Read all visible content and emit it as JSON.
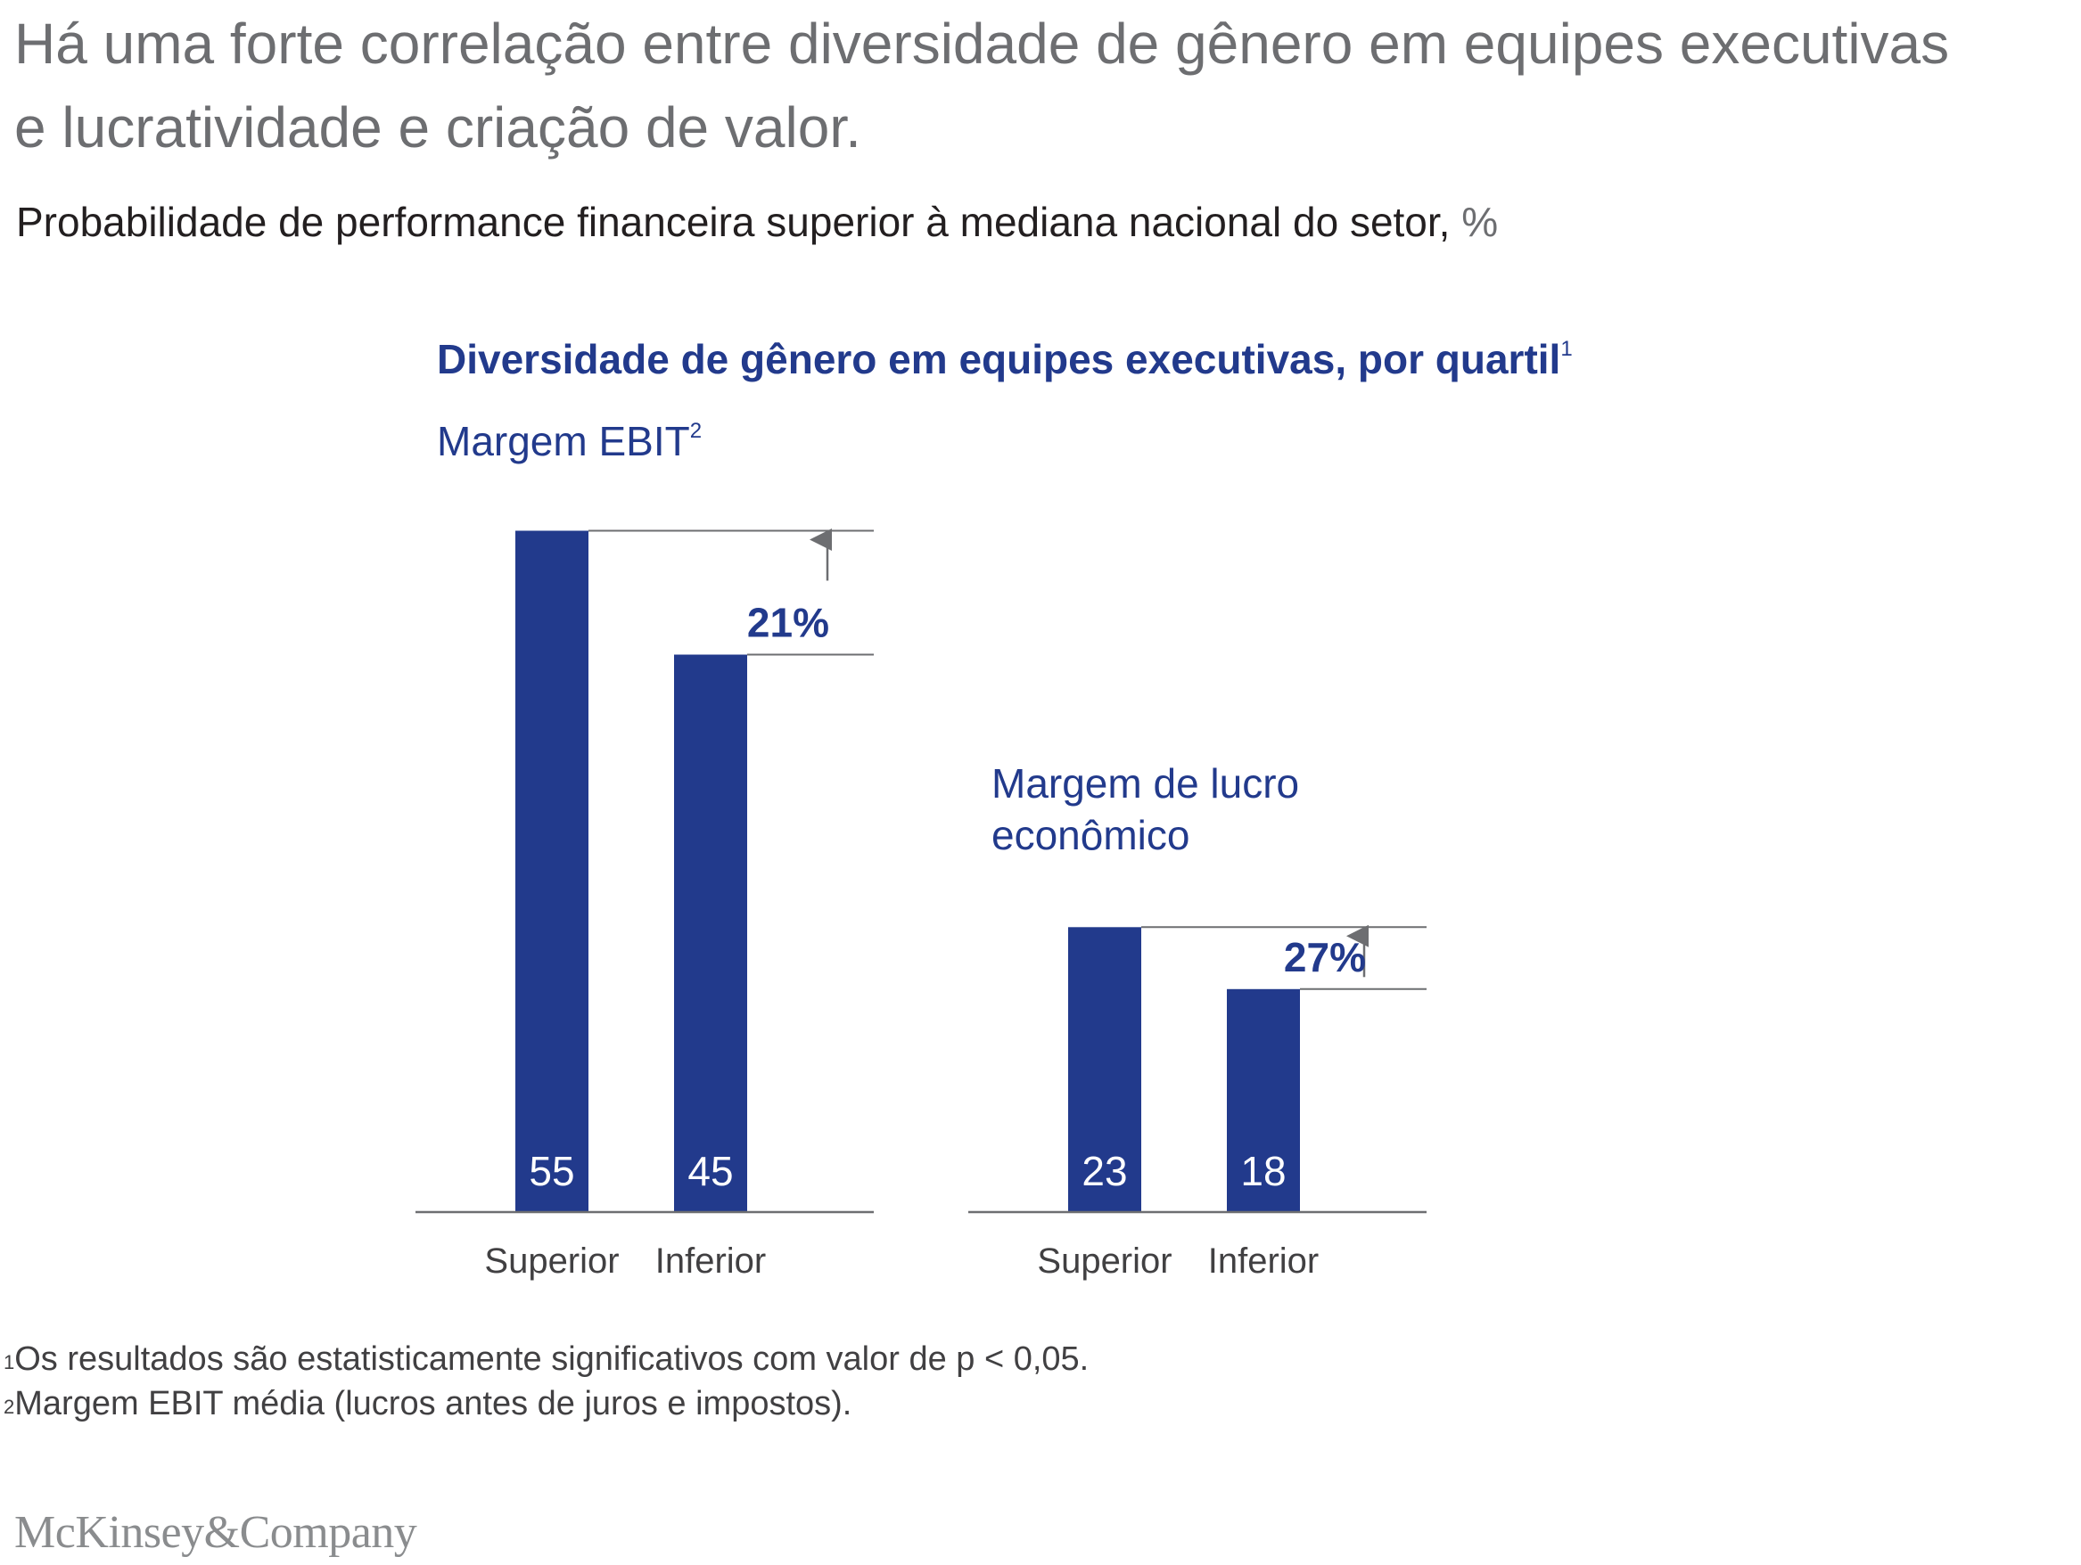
{
  "headline": "Há uma forte correlação entre diversidade de gênero em equipes executivas e lucratividade e criação de valor.",
  "subtitle": {
    "text": "Probabilidade de performance financeira superior à mediana nacional do setor,",
    "unit": " %"
  },
  "chart_title": {
    "text": "Diversidade de gênero em equipes executivas, por quartil",
    "footnote_mark": "1"
  },
  "colors": {
    "bar": "#223a8c",
    "axis": "#6d6e71",
    "accent_text": "#223a8c"
  },
  "chart_data": [
    {
      "type": "bar",
      "title": "Margem EBIT",
      "title_footnote_mark": "2",
      "categories": [
        "Superior",
        "Inferior"
      ],
      "values": [
        55,
        45
      ],
      "ylim": [
        0,
        55
      ],
      "difference_label": "21%",
      "ylabel": "%",
      "xlabel": ""
    },
    {
      "type": "bar",
      "title": "Margem de lucro econômico",
      "title_lines": [
        "Margem de lucro",
        "econômico"
      ],
      "categories": [
        "Superior",
        "Inferior"
      ],
      "values": [
        23,
        18
      ],
      "ylim": [
        0,
        55
      ],
      "difference_label": "27%",
      "ylabel": "%",
      "xlabel": ""
    }
  ],
  "footnotes": [
    {
      "mark": "1",
      "text": "Os resultados são estatisticamente significativos com valor de p < 0,05."
    },
    {
      "mark": "2",
      "text": "Margem EBIT média (lucros antes de juros e impostos)."
    }
  ],
  "logo": "McKinsey&Company"
}
